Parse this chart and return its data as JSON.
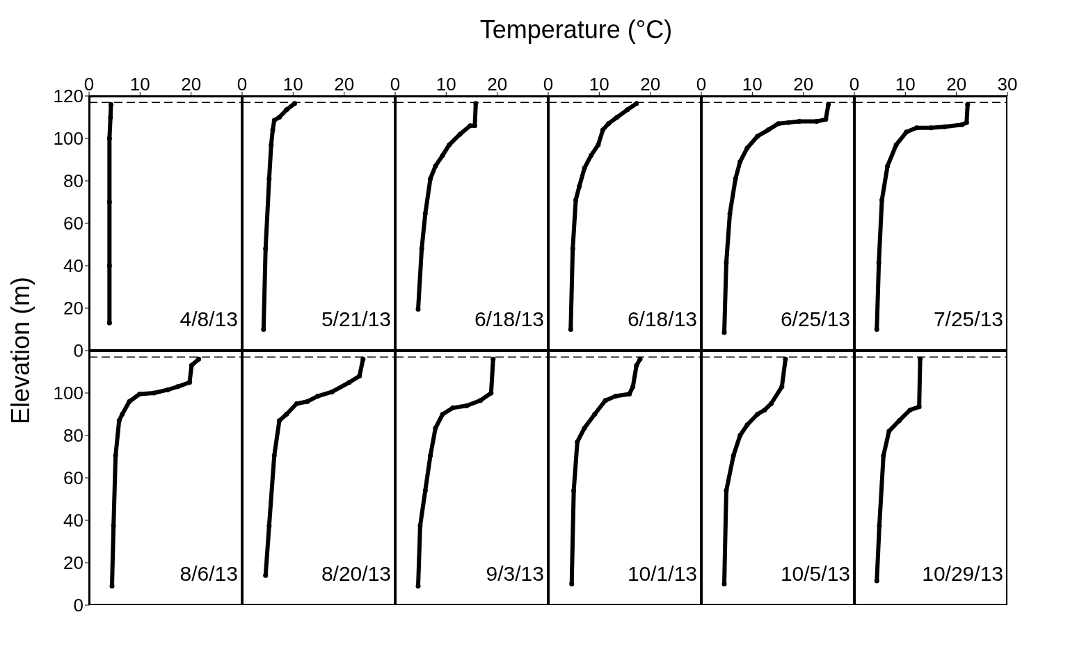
{
  "chart_data": [
    {
      "type": "line",
      "ylabel": "Elevation (m)",
      "marker": "circle",
      "xlim": [
        0,
        30
      ],
      "xticks": [
        0,
        10,
        20
      ],
      "ylim": [
        0,
        120
      ],
      "yticks": [
        0,
        20,
        40,
        60,
        80,
        100,
        120
      ],
      "annotations": [
        "4/8/13"
      ],
      "ref_lines": [
        {
          "axis": "y",
          "value": 117,
          "line_style": "dashed"
        }
      ],
      "series": [
        {
          "color": "#000000",
          "x": [
            4,
            4,
            4,
            4,
            4.2,
            4.3
          ],
          "values": [
            13,
            40,
            70,
            100,
            110,
            116
          ]
        }
      ]
    },
    {
      "type": "line",
      "marker": "circle",
      "tick_labels": "x",
      "xlim": [
        0,
        30
      ],
      "xticks": [
        0,
        10,
        20
      ],
      "ylim": [
        0,
        120
      ],
      "yticks": [
        0,
        20,
        40,
        60,
        80,
        100,
        120
      ],
      "annotations": [
        "5/21/13"
      ],
      "ref_lines": [
        {
          "axis": "y",
          "value": 117,
          "line_style": "dashed"
        }
      ],
      "series": [
        {
          "color": "#000000",
          "x": [
            4.2,
            4.6,
            5.3,
            5.7,
            6.0,
            6.3,
            7.3,
            8.7,
            10.3
          ],
          "values": [
            10,
            48,
            81,
            97,
            104,
            108.5,
            110,
            113.5,
            116.5
          ]
        }
      ]
    },
    {
      "type": "line",
      "marker": "circle",
      "tick_labels": "x",
      "xlim": [
        0,
        30
      ],
      "xticks": [
        0,
        10,
        20
      ],
      "ylim": [
        0,
        120
      ],
      "yticks": [
        0,
        20,
        40,
        60,
        80,
        100,
        120
      ],
      "annotations": [
        "6/18/13"
      ],
      "ref_lines": [
        {
          "axis": "y",
          "value": 117,
          "line_style": "dashed"
        }
      ],
      "series": [
        {
          "color": "#000000",
          "x": [
            4.5,
            5.2,
            5.9,
            6.9,
            7.9,
            9.3,
            10.6,
            12.7,
            14.7,
            15.6,
            15.8
          ],
          "values": [
            19.5,
            48,
            64.5,
            81,
            87,
            92,
            97,
            102,
            106,
            106,
            116.5
          ]
        }
      ]
    },
    {
      "type": "line",
      "xlabel": "Temperature (°C)",
      "marker": "circle",
      "tick_labels": "x",
      "xlim": [
        0,
        30
      ],
      "xticks": [
        0,
        10,
        20
      ],
      "ylim": [
        0,
        120
      ],
      "yticks": [
        0,
        20,
        40,
        60,
        80,
        100,
        120
      ],
      "annotations": [
        "6/18/13"
      ],
      "ref_lines": [
        {
          "axis": "y",
          "value": 117,
          "line_style": "dashed"
        }
      ],
      "series": [
        {
          "color": "#000000",
          "x": [
            4.4,
            4.8,
            5.4,
            6.1,
            7.1,
            8.4,
            9.8,
            10.7,
            11.8,
            13.5,
            15.5,
            17.3
          ],
          "values": [
            10,
            48,
            71,
            77.5,
            86,
            92,
            97,
            104,
            107,
            110,
            113.5,
            116.5
          ]
        }
      ]
    },
    {
      "type": "line",
      "marker": "circle",
      "tick_labels": "x",
      "xlim": [
        0,
        30
      ],
      "xticks": [
        0,
        10,
        20
      ],
      "ylim": [
        0,
        120
      ],
      "yticks": [
        0,
        20,
        40,
        60,
        80,
        100,
        120
      ],
      "annotations": [
        "6/25/13"
      ],
      "ref_lines": [
        {
          "axis": "y",
          "value": 117,
          "line_style": "dashed"
        }
      ],
      "series": [
        {
          "color": "#000000",
          "x": [
            4.5,
            4.9,
            5.6,
            6.7,
            7.6,
            9.0,
            11.0,
            13.1,
            15.1,
            17.1,
            19.2,
            22.6,
            24.4,
            24.9
          ],
          "values": [
            8.5,
            41.5,
            64.5,
            81,
            89,
            95.5,
            101,
            104,
            107,
            107.5,
            108,
            108,
            109,
            116
          ]
        }
      ]
    },
    {
      "type": "line",
      "marker": "circle",
      "tick_labels": "x",
      "xlim": [
        0,
        30
      ],
      "xticks": [
        0,
        10,
        20,
        30
      ],
      "ylim": [
        0,
        120
      ],
      "yticks": [
        0,
        20,
        40,
        60,
        80,
        100,
        120
      ],
      "annotations": [
        "7/25/13"
      ],
      "ref_lines": [
        {
          "axis": "y",
          "value": 117,
          "line_style": "dashed"
        }
      ],
      "series": [
        {
          "color": "#000000",
          "x": [
            4.4,
            4.8,
            5.4,
            6.5,
            8.2,
            10.2,
            12.2,
            15.0,
            17.7,
            21.1,
            22.0,
            22.2
          ],
          "values": [
            10,
            41.5,
            71,
            87,
            97,
            103,
            105,
            105,
            105.5,
            106.5,
            107.5,
            116
          ]
        }
      ]
    },
    {
      "type": "line",
      "marker": "circle",
      "tick_labels": "y",
      "xlim": [
        0,
        30
      ],
      "xticks": [
        0,
        10,
        20
      ],
      "ylim": [
        0,
        120
      ],
      "yticks": [
        0,
        20,
        40,
        60,
        80,
        100
      ],
      "annotations": [
        "8/6/13"
      ],
      "ref_lines": [
        {
          "axis": "y",
          "value": 117,
          "line_style": "dashed"
        }
      ],
      "series": [
        {
          "color": "#000000",
          "x": [
            4.5,
            4.8,
            5.2,
            5.9,
            6.5,
            7.9,
            9.9,
            12.7,
            15.4,
            17.4,
            19.7,
            20.1,
            21.5
          ],
          "values": [
            9,
            37.5,
            70.5,
            87,
            90,
            96,
            99.5,
            100,
            101.5,
            103,
            105,
            113,
            116
          ]
        }
      ]
    },
    {
      "type": "line",
      "marker": "circle",
      "tick_labels": false,
      "xlim": [
        0,
        30
      ],
      "xticks": [
        0,
        10,
        20
      ],
      "ylim": [
        0,
        120
      ],
      "yticks": [
        0,
        20,
        40,
        60,
        80,
        100,
        120
      ],
      "annotations": [
        "8/20/13"
      ],
      "ref_lines": [
        {
          "axis": "y",
          "value": 117,
          "line_style": "dashed"
        }
      ],
      "series": [
        {
          "color": "#000000",
          "x": [
            4.6,
            5.3,
            6.3,
            7.3,
            8.7,
            10.7,
            12.8,
            14.8,
            17.6,
            21.0,
            23.0,
            23.7
          ],
          "values": [
            14,
            37.5,
            70.5,
            87,
            90,
            95,
            96,
            98.5,
            100.5,
            105,
            108,
            116
          ]
        }
      ]
    },
    {
      "type": "line",
      "marker": "circle",
      "tick_labels": false,
      "xlim": [
        0,
        30
      ],
      "xticks": [
        0,
        10,
        20
      ],
      "ylim": [
        0,
        120
      ],
      "yticks": [
        0,
        20,
        40,
        60,
        80,
        100,
        120
      ],
      "annotations": [
        "9/3/13"
      ],
      "ref_lines": [
        {
          "axis": "y",
          "value": 117,
          "line_style": "dashed"
        }
      ],
      "series": [
        {
          "color": "#000000",
          "x": [
            4.5,
            4.9,
            5.9,
            6.9,
            7.9,
            9.3,
            11.3,
            14.0,
            16.7,
            18.8,
            19.2
          ],
          "values": [
            9,
            37.5,
            54,
            70.5,
            83.5,
            90,
            93,
            94,
            96.5,
            100,
            116
          ]
        }
      ]
    },
    {
      "type": "line",
      "marker": "circle",
      "tick_labels": false,
      "xlim": [
        0,
        30
      ],
      "xticks": [
        0,
        10,
        20
      ],
      "ylim": [
        0,
        120
      ],
      "yticks": [
        0,
        20,
        40,
        60,
        80,
        100,
        120
      ],
      "annotations": [
        "10/1/13"
      ],
      "ref_lines": [
        {
          "axis": "y",
          "value": 117,
          "line_style": "dashed"
        }
      ],
      "series": [
        {
          "color": "#000000",
          "x": [
            4.6,
            5.0,
            5.7,
            7.1,
            9.1,
            11.2,
            13.2,
            15.9,
            16.6,
            17.3,
            18.0
          ],
          "values": [
            10,
            54,
            77,
            83.5,
            90,
            96.5,
            98.5,
            99.5,
            103,
            113,
            116
          ]
        }
      ]
    },
    {
      "type": "line",
      "marker": "circle",
      "tick_labels": false,
      "xlim": [
        0,
        30
      ],
      "xticks": [
        0,
        10,
        20
      ],
      "ylim": [
        0,
        120
      ],
      "yticks": [
        0,
        20,
        40,
        60,
        80,
        100,
        120
      ],
      "annotations": [
        "10/5/13"
      ],
      "ref_lines": [
        {
          "axis": "y",
          "value": 117,
          "line_style": "dashed"
        }
      ],
      "series": [
        {
          "color": "#000000",
          "x": [
            4.5,
            4.9,
            6.3,
            7.6,
            9.0,
            11.0,
            12.4,
            13.7,
            15.8,
            16.5
          ],
          "values": [
            10,
            54,
            70.5,
            80,
            85,
            90,
            92,
            95,
            103,
            116
          ]
        }
      ]
    },
    {
      "type": "line",
      "marker": "circle",
      "tick_labels": false,
      "xlim": [
        0,
        30
      ],
      "xticks": [
        0,
        10,
        20,
        30
      ],
      "ylim": [
        0,
        120
      ],
      "yticks": [
        0,
        20,
        40,
        60,
        80,
        100,
        120
      ],
      "annotations": [
        "10/29/13"
      ],
      "ref_lines": [
        {
          "axis": "y",
          "value": 117,
          "line_style": "dashed"
        }
      ],
      "series": [
        {
          "color": "#000000",
          "x": [
            4.4,
            4.9,
            5.7,
            6.8,
            8.8,
            10.9,
            12.7,
            12.9
          ],
          "values": [
            11.5,
            37.5,
            70.5,
            82,
            87,
            92,
            93.5,
            116
          ]
        }
      ]
    }
  ]
}
